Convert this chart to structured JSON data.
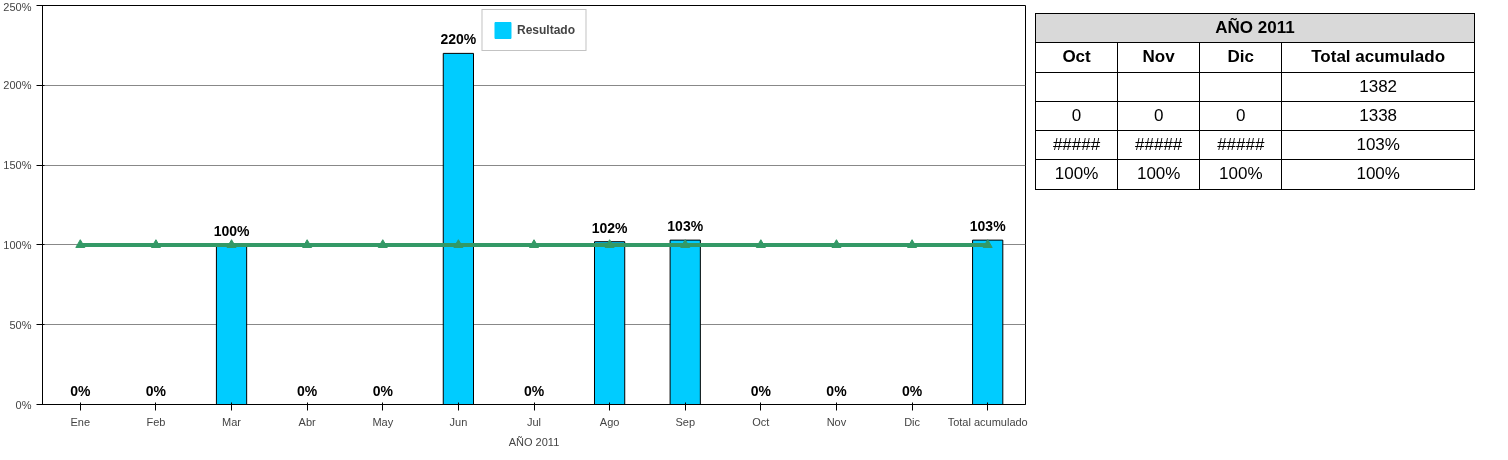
{
  "chart_data": [
    {
      "type": "bar",
      "xlabel": "AÑO 2011",
      "categories": [
        "Ene",
        "Feb",
        "Mar",
        "Abr",
        "May",
        "Jun",
        "Jul",
        "Ago",
        "Sep",
        "Oct",
        "Nov",
        "Dic",
        "Total acumulado"
      ],
      "series": [
        {
          "name": "Resultado",
          "type": "bar",
          "color": "#00ccff",
          "values": [
            0,
            0,
            100,
            0,
            0,
            220,
            0,
            102,
            103,
            0,
            0,
            0,
            103
          ],
          "value_labels": [
            "0%",
            "0%",
            "100%",
            "0%",
            "0%",
            "220%",
            "0%",
            "102%",
            "103%",
            "0%",
            "0%",
            "0%",
            "103%"
          ]
        },
        {
          "type": "line",
          "color": "#339966",
          "marker": "triangle",
          "values": [
            100,
            100,
            100,
            100,
            100,
            100,
            100,
            100,
            100,
            100,
            100,
            100,
            100
          ]
        }
      ],
      "ylim": [
        0,
        250
      ],
      "yticks": [
        {
          "value": 0,
          "label": "0%"
        },
        {
          "value": 50,
          "label": "50%"
        },
        {
          "value": 100,
          "label": "100%"
        },
        {
          "value": 150,
          "label": "150%"
        },
        {
          "value": 200,
          "label": "200%"
        },
        {
          "value": 250,
          "label": "250%"
        }
      ],
      "grid": "y",
      "legend": "top"
    },
    {
      "type": "other",
      "title": "AÑO 2011",
      "categories": [
        "Oct",
        "Nov",
        "Dic",
        "Total acumulado"
      ],
      "cell_labels": [
        [
          null,
          null,
          null,
          "1382"
        ],
        [
          "0",
          "0",
          "0",
          "1338"
        ],
        [
          "#####",
          "#####",
          "#####",
          "103%"
        ],
        [
          "100%",
          "100%",
          "100%",
          "100%"
        ]
      ]
    }
  ]
}
